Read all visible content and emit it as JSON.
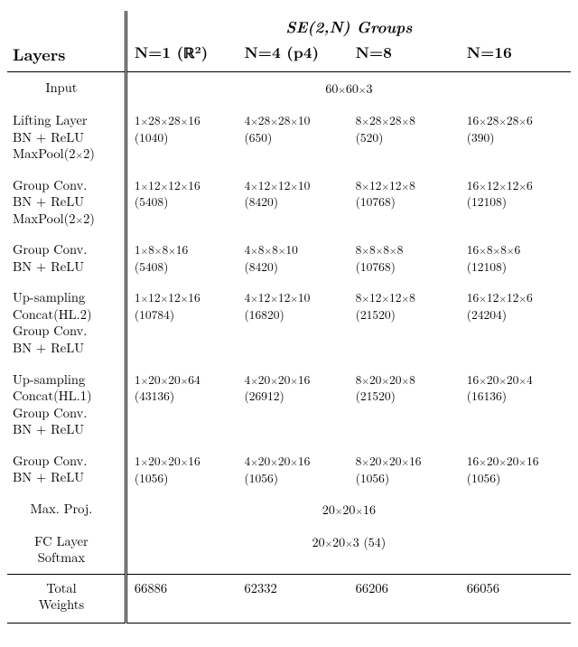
{
  "header": {
    "super": "SE(2,N) Groups",
    "layers": "Layers",
    "cols": [
      "N=1 (ℝ²)",
      "N=4 (p4)",
      "N=8",
      "N=16"
    ]
  },
  "rows": [
    {
      "label": "Input",
      "label_center": true,
      "span": "60×60×3"
    },
    {
      "label": "Lifting Layer\nBN + ReLU\nMaxPool(2×2)",
      "cells": [
        "1×28×28×16\n(1040)",
        "4×28×28×10\n(650)",
        "8×28×28×8\n(520)",
        "16×28×28×6\n(390)"
      ]
    },
    {
      "label": "Group Conv.\nBN + ReLU\nMaxPool(2×2)",
      "cells": [
        "1×12×12×16\n(5408)",
        "4×12×12×10\n(8420)",
        "8×12×12×8\n(10768)",
        "16×12×12×6\n(12108)"
      ]
    },
    {
      "label": "Group Conv.\nBN + ReLU",
      "cells": [
        "1×8×8×16\n(5408)",
        "4×8×8×10\n(8420)",
        "8×8×8×8\n(10768)",
        "16×8×8×6\n(12108)"
      ]
    },
    {
      "label": "Up-sampling\nConcat(HL.2)\nGroup Conv.\nBN + ReLU",
      "cells": [
        "1×12×12×16\n(10784)",
        "4×12×12×10\n(16820)",
        "8×12×12×8\n(21520)",
        "16×12×12×6\n(24204)"
      ]
    },
    {
      "label": "Up-sampling\nConcat(HL.1)\nGroup Conv.\nBN + ReLU",
      "cells": [
        "1×20×20×64\n(43136)",
        "4×20×20×16\n(26912)",
        "8×20×20×8\n(21520)",
        "16×20×20×4\n(16136)"
      ]
    },
    {
      "label": "Group Conv.\nBN + ReLU",
      "cells": [
        "1×20×20×16\n(1056)",
        "4×20×20×16\n(1056)",
        "8×20×20×16\n(1056)",
        "16×20×20×16\n(1056)"
      ]
    },
    {
      "label": "Max. Proj.",
      "label_center": true,
      "span": "20×20×16"
    },
    {
      "label": "FC Layer\nSoftmax",
      "label_center": true,
      "span": "20×20×3 (54)"
    }
  ],
  "totals": {
    "label": "Total\nWeights",
    "cells": [
      "66886",
      "62332",
      "66206",
      "66056"
    ]
  },
  "style": {
    "x_glyph": "×"
  }
}
